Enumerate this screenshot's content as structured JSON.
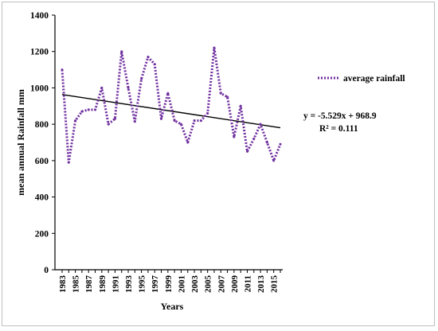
{
  "chart_data": {
    "type": "line",
    "xlabel": "Years",
    "ylabel": "mean  annual Rainfall mm",
    "ylim": [
      0,
      1400
    ],
    "yticks": [
      0,
      200,
      400,
      600,
      800,
      1000,
      1200,
      1400
    ],
    "ytick_labels": [
      "0",
      "200",
      "400",
      "600",
      "800",
      "1000",
      "1200",
      "1400"
    ],
    "xtick_labels": [
      "1983",
      "1985",
      "1987",
      "1989",
      "1991",
      "1993",
      "1995",
      "1997",
      "1999",
      "2001",
      "2003",
      "2005",
      "2007",
      "2009",
      "2011",
      "2013",
      "2015"
    ],
    "grid": false,
    "legend_position": "right",
    "series": [
      {
        "name": "average rainfall",
        "color": "#7030a0",
        "style": "dotted",
        "x": [
          1983,
          1984,
          1985,
          1986,
          1987,
          1988,
          1989,
          1990,
          1991,
          1992,
          1993,
          1994,
          1995,
          1996,
          1997,
          1998,
          1999,
          2000,
          2001,
          2002,
          2003,
          2004,
          2005,
          2006,
          2007,
          2008,
          2009,
          2010,
          2011,
          2012,
          2013,
          2014,
          2015,
          2016
        ],
        "values": [
          1100,
          590,
          820,
          870,
          880,
          880,
          1000,
          800,
          830,
          1200,
          1000,
          815,
          1050,
          1170,
          1130,
          830,
          970,
          820,
          800,
          700,
          820,
          820,
          860,
          1220,
          970,
          950,
          730,
          900,
          650,
          720,
          800,
          700,
          600,
          690
        ]
      }
    ],
    "trendline": {
      "color": "#000000",
      "slope": -5.529,
      "intercept": 968.9,
      "equation": "y = -5.529x + 968.9",
      "r2": "R² = 0.111"
    }
  }
}
